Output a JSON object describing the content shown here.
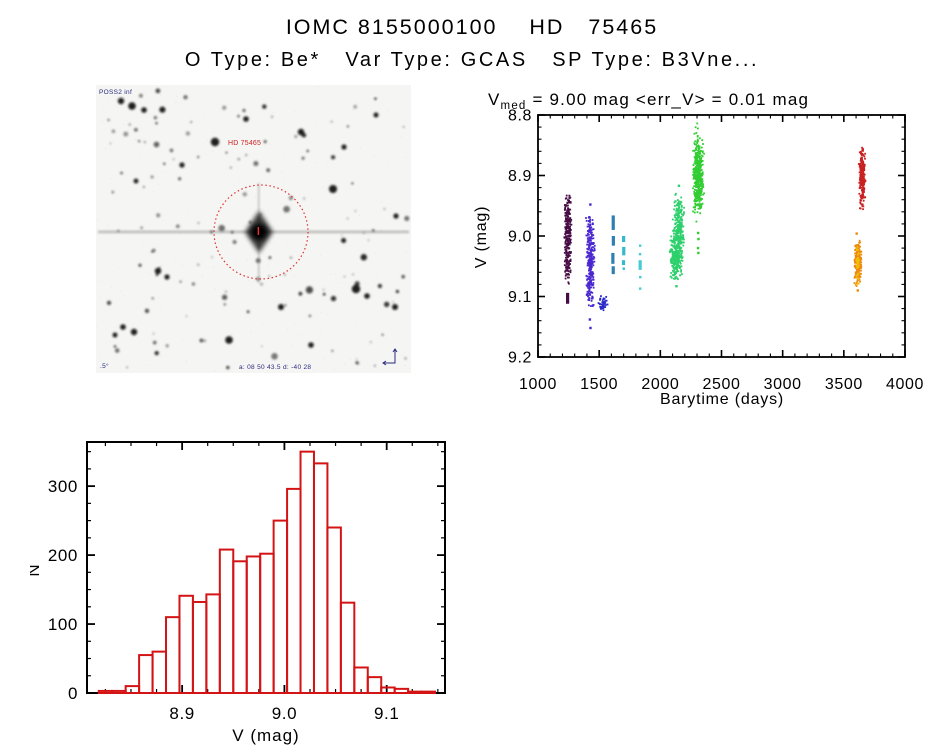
{
  "header": {
    "title": "IOMC 8155000100    HD   75465",
    "subtitle": "O Type: Be*   Var Type: GCAS   SP Type: B3Vne..."
  },
  "finder_chart": {
    "survey_label": "POSS2 inf",
    "star_label": "HD 75465",
    "coords_label": "a: 08 50 43.5  d: -40 28",
    "scale_label": ".5°",
    "marker_color": "#e03030",
    "annotation_color": "#2a2a80",
    "label_color": "#cc2222"
  },
  "chart_data": [
    {
      "type": "scatter",
      "title": "V_med = 9.00 mag <err_V> = 0.01 mag",
      "title_v": "V",
      "title_sub": "med",
      "title_rest": " = 9.00 mag <err_V> = 0.01 mag",
      "xlabel": "Barytime (days)",
      "ylabel": "V (mag)",
      "xlim": [
        1000,
        4000
      ],
      "ylim": [
        8.8,
        9.2
      ],
      "axis_inverted": true,
      "x_major_ticks": [
        "1000",
        "1500",
        "2000",
        "2500",
        "3000",
        "3500",
        "4000"
      ],
      "y_major_ticks": [
        "8.8",
        "8.9",
        "9.0",
        "9.1",
        "9.2"
      ],
      "x_minor_step": 100,
      "y_minor_step": 0.02,
      "axis_color": "#000000",
      "clusters": [
        {
          "label": "epoch-1",
          "color": "#470b45",
          "strips": [
            {
              "t": 1245,
              "v": [
                8.915,
                9.09
              ],
              "w": 4,
              "n": 260
            }
          ],
          "dashes": [
            [
              1242,
              9.094,
              9.112
            ]
          ],
          "dots": []
        },
        {
          "label": "epoch-2",
          "color": "#4a28d0",
          "strips": [
            {
              "t": 1428,
              "v": [
                8.958,
                9.127
              ],
              "w": 4.5,
              "n": 300
            }
          ],
          "dashes": [],
          "dots": [
            [
              1428,
              8.948
            ],
            [
              1424,
              9.138
            ],
            [
              1429,
              9.152
            ]
          ]
        },
        {
          "label": "epoch-3",
          "color": "#2a2ac8",
          "strips": [
            {
              "t": 1535,
              "v": [
                9.095,
                9.127
              ],
              "w": 5,
              "n": 45
            }
          ],
          "dashes": [],
          "dots": []
        },
        {
          "label": "epoch-4",
          "color": "#2f7fb2",
          "strips": [],
          "dashes": [
            [
              1615,
              8.966,
              8.99
            ],
            [
              1616,
              9.0,
              9.016
            ],
            [
              1612,
              9.028,
              9.046
            ],
            [
              1615,
              9.05,
              9.063
            ]
          ],
          "dots": []
        },
        {
          "label": "epoch-5",
          "color": "#35b8cc",
          "strips": [],
          "dashes": [
            [
              1700,
              9.0,
              9.01
            ],
            [
              1701,
              9.018,
              9.032
            ],
            [
              1699,
              9.04,
              9.048
            ]
          ],
          "dots": [
            [
              1701,
              9.054
            ]
          ]
        },
        {
          "label": "epoch-6",
          "color": "#45cbd8",
          "strips": [],
          "dashes": [
            [
              1835,
              9.04,
              9.056
            ]
          ],
          "dots": [
            [
              1835,
              9.016
            ],
            [
              1834,
              9.03
            ],
            [
              1836,
              9.068
            ],
            [
              1835,
              9.087
            ]
          ]
        },
        {
          "label": "epoch-7",
          "color": "#2dd06c",
          "strips": [
            {
              "t": 2115,
              "v": [
                8.995,
                9.078
              ],
              "w": 5,
              "n": 160
            },
            {
              "t": 2150,
              "v": [
                8.925,
                9.068
              ],
              "w": 6,
              "n": 340
            }
          ],
          "dashes": [],
          "dots": [
            [
              2152,
              8.917
            ],
            [
              2132,
              9.083
            ]
          ]
        },
        {
          "label": "epoch-8",
          "color": "#32cd32",
          "strips": [
            {
              "t": 2310,
              "v": [
                8.813,
                8.985
              ],
              "w": 5,
              "n": 120
            },
            {
              "t": 2312,
              "v": [
                8.84,
                8.965
              ],
              "w": 6,
              "n": 320
            }
          ],
          "dashes": [],
          "dots": [
            [
              2309,
              8.995
            ],
            [
              2312,
              9.005
            ],
            [
              2308,
              9.02
            ],
            [
              2311,
              9.028
            ]
          ]
        },
        {
          "label": "epoch-9",
          "color": "#c92121",
          "strips": [
            {
              "t": 3650,
              "v": [
                8.848,
                8.957
              ],
              "w": 3.5,
              "n": 220
            }
          ],
          "dashes": [],
          "dots": []
        },
        {
          "label": "epoch-10",
          "color": "#ec8a12",
          "strips": [
            {
              "t": 3615,
              "v": [
                9.004,
                9.085
              ],
              "w": 4,
              "n": 200
            }
          ],
          "dashes": [],
          "dots": [
            [
              3605,
              8.996
            ],
            [
              3614,
              9.09
            ]
          ]
        },
        {
          "label": "epoch-10-fringe",
          "color": "#f0c000",
          "strips": [
            {
              "t": 3613,
              "v": [
                9.01,
                9.082
              ],
              "w": 1.5,
              "n": 35
            }
          ],
          "dashes": [],
          "dots": []
        }
      ]
    },
    {
      "type": "histogram",
      "xlabel": "V (mag)",
      "ylabel": "N",
      "color": "#d41414",
      "bin_start": 8.8185,
      "bin_width": 0.01315,
      "counts": [
        3,
        3,
        10,
        55,
        60,
        110,
        141,
        132,
        143,
        208,
        191,
        198,
        202,
        250,
        296,
        350,
        333,
        240,
        131,
        37,
        23,
        8,
        6,
        2,
        2
      ],
      "xlim": [
        8.807,
        9.157
      ],
      "ylim": [
        0,
        364
      ],
      "x_major_ticks": [
        "8.9",
        "9.0",
        "9.1"
      ],
      "y_major_ticks": [
        "0",
        "100",
        "200",
        "300"
      ],
      "x_minor_step": 0.025,
      "y_minor_step": 25,
      "axis_color": "#000000"
    }
  ]
}
